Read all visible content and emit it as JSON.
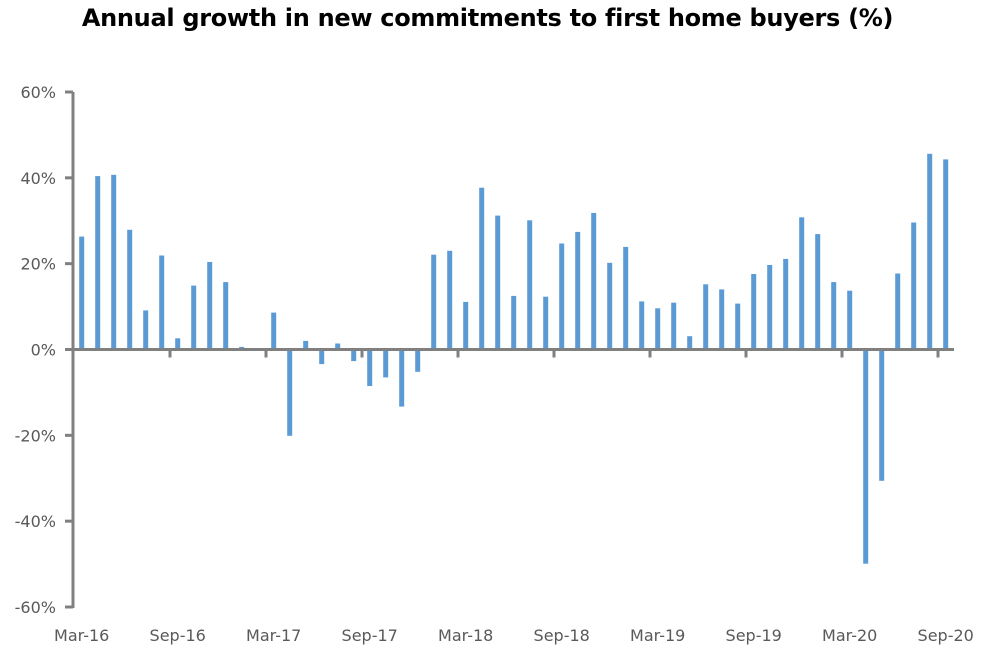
{
  "chart_data": {
    "type": "bar",
    "title": "Annual growth in new commitments to first home buyers (%)",
    "xlabel": "",
    "ylabel": "",
    "ylim": [
      -60,
      60
    ],
    "yticks": [
      60,
      40,
      20,
      0,
      -20,
      -40,
      -60
    ],
    "ytick_labels": [
      "60%",
      "40%",
      "20%",
      "0%",
      "-20%",
      "-40%",
      "-60%"
    ],
    "xtick_labels": [
      "Mar-16",
      "Sep-16",
      "Mar-17",
      "Sep-17",
      "Mar-18",
      "Sep-18",
      "Mar-19",
      "Sep-19",
      "Mar-20",
      "Sep-20"
    ],
    "xtick_every": 6,
    "grid": false,
    "legend": "none",
    "bar_color": "#5B9BD5",
    "axis_color": "#808080",
    "categories": [
      "Mar-16",
      "Apr-16",
      "May-16",
      "Jun-16",
      "Jul-16",
      "Aug-16",
      "Sep-16",
      "Oct-16",
      "Nov-16",
      "Dec-16",
      "Jan-17",
      "Feb-17",
      "Mar-17",
      "Apr-17",
      "May-17",
      "Jun-17",
      "Jul-17",
      "Aug-17",
      "Sep-17",
      "Oct-17",
      "Nov-17",
      "Dec-17",
      "Jan-18",
      "Feb-18",
      "Mar-18",
      "Apr-18",
      "May-18",
      "Jun-18",
      "Jul-18",
      "Aug-18",
      "Sep-18",
      "Oct-18",
      "Nov-18",
      "Dec-18",
      "Jan-19",
      "Feb-19",
      "Mar-19",
      "Apr-19",
      "May-19",
      "Jun-19",
      "Jul-19",
      "Aug-19",
      "Sep-19",
      "Oct-19",
      "Nov-19",
      "Dec-19",
      "Jan-20",
      "Feb-20",
      "Mar-20",
      "Apr-20",
      "May-20",
      "Jun-20",
      "Jul-20",
      "Aug-20",
      "Sep-20"
    ],
    "values": [
      26.3,
      40.4,
      40.7,
      27.9,
      9.1,
      21.9,
      2.6,
      14.9,
      20.4,
      15.7,
      0.6,
      0,
      8.6,
      -20.1,
      2.0,
      -3.4,
      1.4,
      -2.7,
      -8.5,
      -6.5,
      -13.3,
      -5.2,
      22.1,
      23.0,
      11.1,
      37.7,
      31.2,
      12.5,
      30.1,
      12.3,
      24.7,
      27.4,
      31.8,
      20.2,
      23.9,
      11.2,
      9.6,
      10.9,
      3.1,
      15.2,
      14.0,
      10.7,
      17.6,
      19.7,
      21.1,
      30.8,
      26.9,
      15.7,
      13.7,
      -49.9,
      -30.6,
      17.7,
      29.6,
      45.6,
      44.3
    ]
  }
}
